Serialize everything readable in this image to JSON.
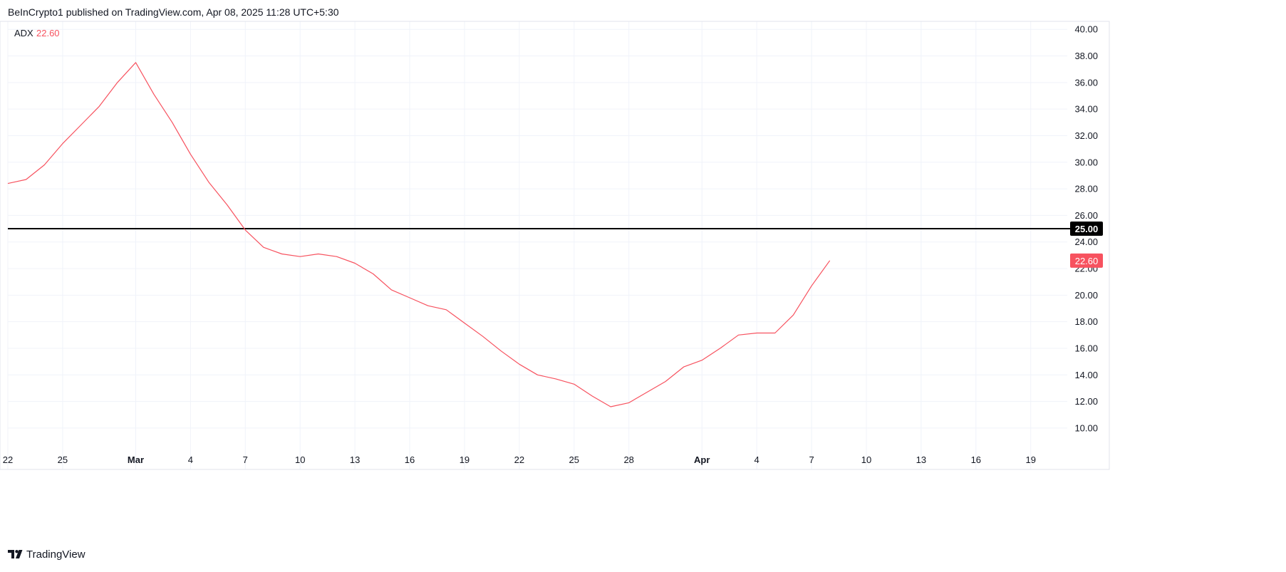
{
  "header": {
    "publisher": "BeInCrypto1",
    "published_text": " published on TradingView.com, Apr 08, 2025 11:28 UTC+5:30"
  },
  "footer": {
    "brand": "TradingView"
  },
  "colors": {
    "series": "#f7525f",
    "reference_line": "#000000",
    "grid": "#f0f3fa",
    "text": "#131722"
  },
  "chart_data": {
    "type": "line",
    "indicator": {
      "name": "ADX",
      "value_label": "22.60"
    },
    "x_tick_labels": [
      "22",
      "25",
      "Mar",
      "4",
      "7",
      "10",
      "13",
      "16",
      "19",
      "22",
      "25",
      "28",
      "Apr",
      "4",
      "7",
      "10",
      "13",
      "16",
      "19"
    ],
    "x_tick_dates": [
      "2025-02-22",
      "2025-02-25",
      "2025-03-01",
      "2025-03-04",
      "2025-03-07",
      "2025-03-10",
      "2025-03-13",
      "2025-03-16",
      "2025-03-19",
      "2025-03-22",
      "2025-03-25",
      "2025-03-28",
      "2025-04-01",
      "2025-04-04",
      "2025-04-07",
      "2025-04-10",
      "2025-04-13",
      "2025-04-16",
      "2025-04-19"
    ],
    "x_range": [
      "2025-02-22",
      "2025-04-21"
    ],
    "y_ticks": [
      "10.00",
      "12.00",
      "14.00",
      "16.00",
      "18.00",
      "20.00",
      "22.00",
      "24.00",
      "26.00",
      "28.00",
      "30.00",
      "32.00",
      "34.00",
      "36.00",
      "38.00",
      "40.00"
    ],
    "ylim": [
      8.6,
      40.6
    ],
    "grid": true,
    "reference_line": {
      "value": 25.0,
      "label": "25.00"
    },
    "last_value_label": "22.60",
    "series": [
      {
        "name": "ADX",
        "x": [
          "2025-02-22",
          "2025-02-23",
          "2025-02-24",
          "2025-02-25",
          "2025-02-26",
          "2025-02-27",
          "2025-02-28",
          "2025-03-01",
          "2025-03-02",
          "2025-03-03",
          "2025-03-04",
          "2025-03-05",
          "2025-03-06",
          "2025-03-07",
          "2025-03-08",
          "2025-03-09",
          "2025-03-10",
          "2025-03-11",
          "2025-03-12",
          "2025-03-13",
          "2025-03-14",
          "2025-03-15",
          "2025-03-16",
          "2025-03-17",
          "2025-03-18",
          "2025-03-19",
          "2025-03-20",
          "2025-03-21",
          "2025-03-22",
          "2025-03-23",
          "2025-03-24",
          "2025-03-25",
          "2025-03-26",
          "2025-03-27",
          "2025-03-28",
          "2025-03-29",
          "2025-03-30",
          "2025-03-31",
          "2025-04-01",
          "2025-04-02",
          "2025-04-03",
          "2025-04-04",
          "2025-04-05",
          "2025-04-06",
          "2025-04-07",
          "2025-04-08"
        ],
        "values": [
          28.4,
          28.7,
          29.8,
          31.4,
          32.8,
          34.2,
          36.0,
          37.5,
          35.1,
          33.0,
          30.6,
          28.5,
          26.8,
          24.9,
          23.6,
          23.1,
          22.9,
          23.1,
          22.9,
          22.4,
          21.6,
          20.4,
          19.8,
          19.2,
          18.9,
          17.9,
          16.9,
          15.8,
          14.8,
          14.0,
          13.7,
          13.3,
          12.4,
          11.6,
          11.9,
          12.7,
          13.5,
          14.6,
          15.1,
          16.0,
          17.0,
          17.15,
          17.15,
          18.5,
          20.7,
          22.6
        ]
      }
    ]
  }
}
